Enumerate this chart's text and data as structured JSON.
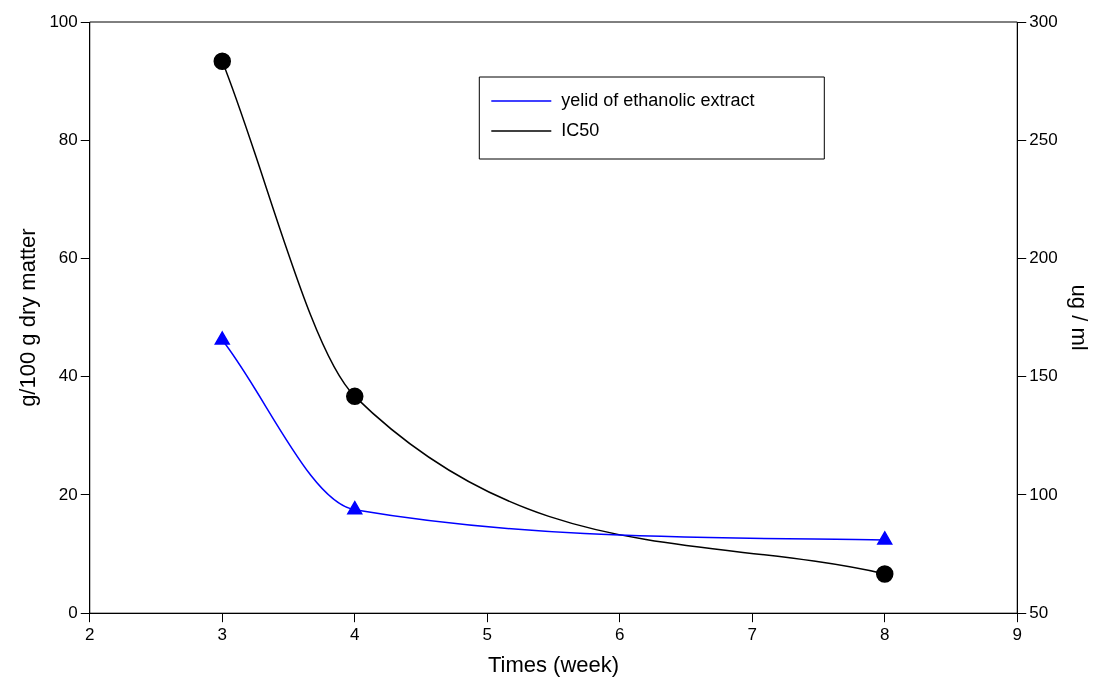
{
  "chart_data": {
    "type": "line",
    "xlabel": "Times (week)",
    "ylabel": "g/100 g dry matter",
    "y2label": "ug / ml",
    "x": [
      3,
      4,
      8
    ],
    "series": [
      {
        "name": "yelid of ethanolic extract",
        "color": "#0000ff",
        "values": [
          46.2,
          17.5,
          12.4
        ],
        "marker": "triangle"
      },
      {
        "name": "IC50",
        "color": "#000000",
        "values": [
          283.4,
          141.7,
          66.6
        ],
        "marker": "circle",
        "axis": "y2"
      }
    ],
    "xlim": [
      2,
      9
    ],
    "xticks": [
      2,
      3,
      4,
      5,
      6,
      7,
      8,
      9
    ],
    "ylim": [
      0,
      100
    ],
    "yticks": [
      0,
      20,
      40,
      60,
      80,
      100
    ],
    "y2lim": [
      50,
      300
    ],
    "y2ticks": [
      50,
      100,
      150,
      200,
      250,
      300
    ],
    "grid": false,
    "legend": "top right",
    "line_style": "solid"
  }
}
